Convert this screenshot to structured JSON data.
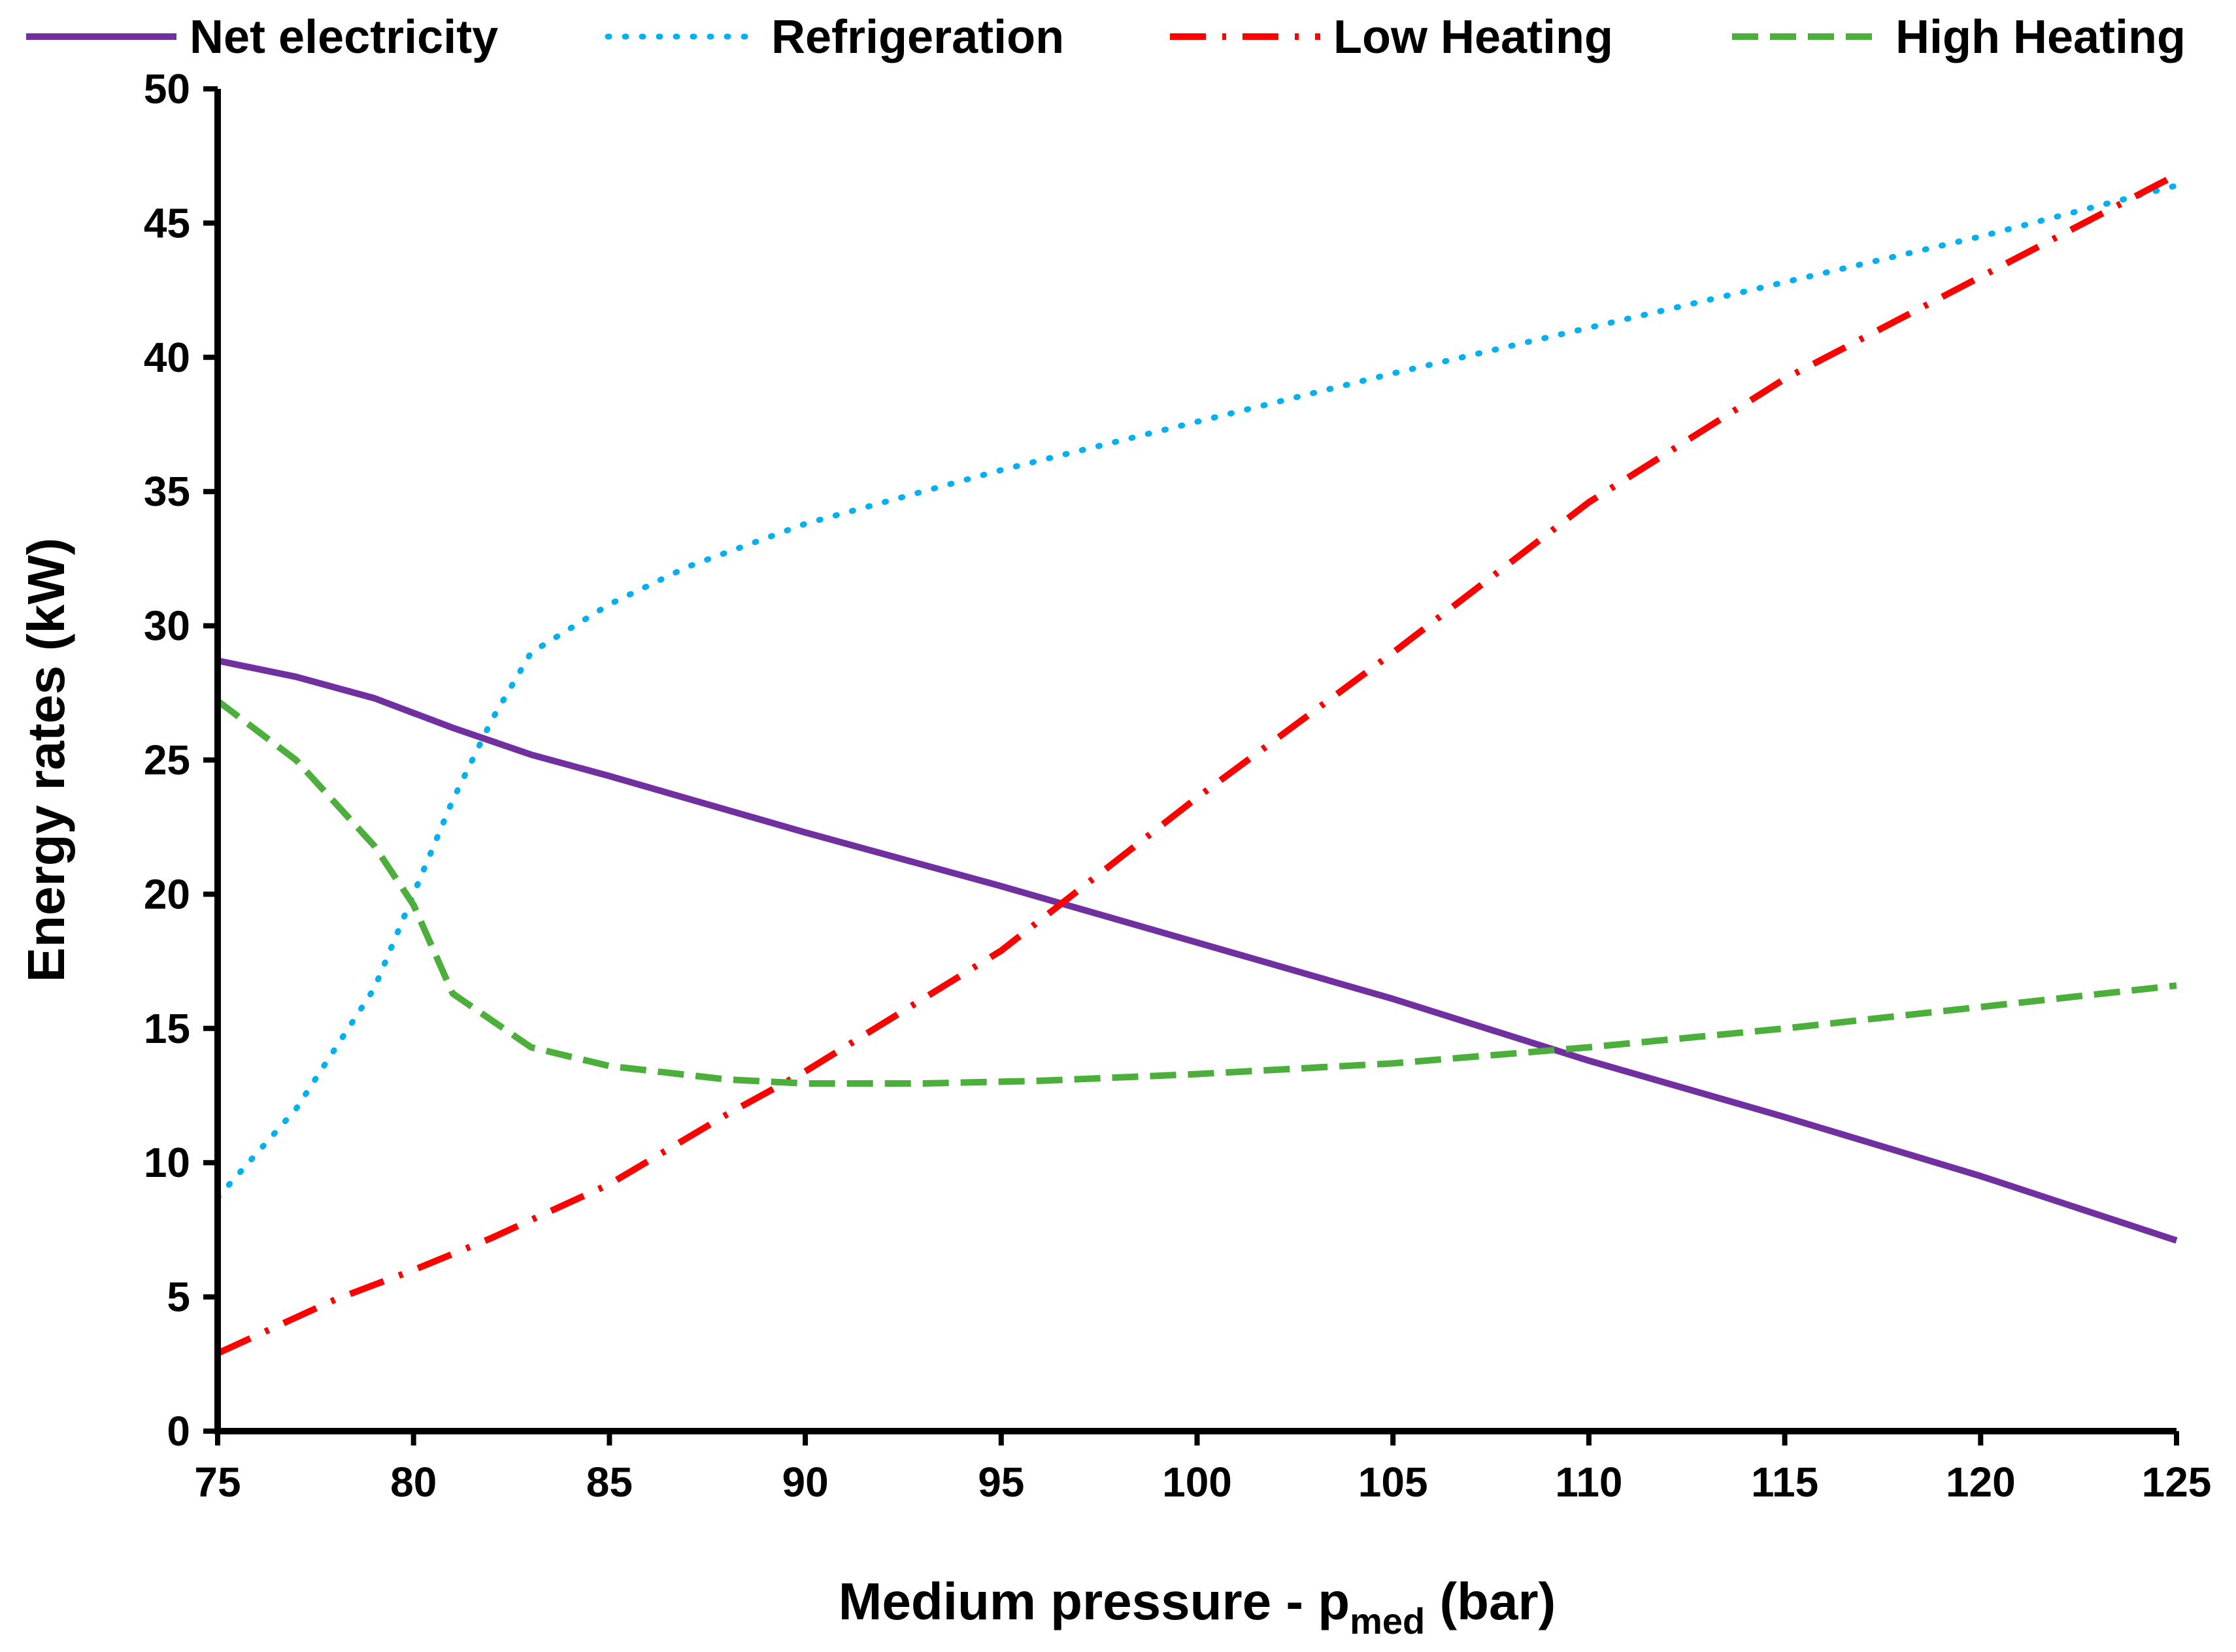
{
  "chart_data": {
    "type": "line",
    "title": "",
    "xlabel_main": "Medium pressure - p",
    "xlabel_sub": "med",
    "xlabel_unit": " (bar)",
    "ylabel": "Energy rates (kW)",
    "xlim": [
      75,
      125
    ],
    "ylim": [
      0,
      50
    ],
    "x_ticks": [
      75,
      80,
      85,
      90,
      95,
      100,
      105,
      110,
      115,
      120,
      125
    ],
    "y_ticks": [
      0,
      5,
      10,
      15,
      20,
      25,
      30,
      35,
      40,
      45,
      50
    ],
    "grid": false,
    "legend_position": "top",
    "series": [
      {
        "name": "Net electricity",
        "color": "#7030A0",
        "style": "solid",
        "points": [
          [
            75,
            28.7
          ],
          [
            77,
            28.1
          ],
          [
            79,
            27.3
          ],
          [
            81,
            26.2
          ],
          [
            83,
            25.2
          ],
          [
            85,
            24.4
          ],
          [
            90,
            22.3
          ],
          [
            95,
            20.3
          ],
          [
            100,
            18.2
          ],
          [
            105,
            16.1
          ],
          [
            110,
            13.8
          ],
          [
            115,
            11.7
          ],
          [
            120,
            9.5
          ],
          [
            125,
            7.1
          ]
        ]
      },
      {
        "name": "Refrigeration",
        "color": "#00B0F0",
        "style": "dotted",
        "points": [
          [
            75,
            8.7
          ],
          [
            77,
            12.0
          ],
          [
            79,
            16.5
          ],
          [
            80,
            20.0
          ],
          [
            81,
            23.5
          ],
          [
            82,
            26.5
          ],
          [
            83,
            29.0
          ],
          [
            85,
            30.8
          ],
          [
            87,
            32.2
          ],
          [
            90,
            33.8
          ],
          [
            95,
            35.8
          ],
          [
            100,
            37.6
          ],
          [
            105,
            39.4
          ],
          [
            110,
            41.1
          ],
          [
            115,
            42.8
          ],
          [
            120,
            44.5
          ],
          [
            125,
            46.4
          ]
        ]
      },
      {
        "name": "Low Heating",
        "color": "#FF0000",
        "style": "dash-dot",
        "points": [
          [
            75,
            2.9
          ],
          [
            78,
            4.9
          ],
          [
            80,
            6.0
          ],
          [
            82,
            7.2
          ],
          [
            85,
            9.2
          ],
          [
            88,
            11.8
          ],
          [
            90,
            13.4
          ],
          [
            95,
            17.9
          ],
          [
            100,
            23.6
          ],
          [
            105,
            29.0
          ],
          [
            110,
            34.6
          ],
          [
            115,
            39.2
          ],
          [
            120,
            43.0
          ],
          [
            125,
            46.8
          ]
        ]
      },
      {
        "name": "High Heating",
        "color": "#4CAF3C",
        "style": "dashed",
        "points": [
          [
            75,
            27.2
          ],
          [
            77,
            25.0
          ],
          [
            79,
            21.8
          ],
          [
            80,
            19.6
          ],
          [
            81,
            16.3
          ],
          [
            83,
            14.3
          ],
          [
            85,
            13.6
          ],
          [
            88,
            13.1
          ],
          [
            90,
            12.95
          ],
          [
            93,
            12.95
          ],
          [
            96,
            13.05
          ],
          [
            100,
            13.3
          ],
          [
            105,
            13.7
          ],
          [
            110,
            14.3
          ],
          [
            115,
            15.0
          ],
          [
            120,
            15.8
          ],
          [
            125,
            16.6
          ]
        ]
      }
    ]
  }
}
